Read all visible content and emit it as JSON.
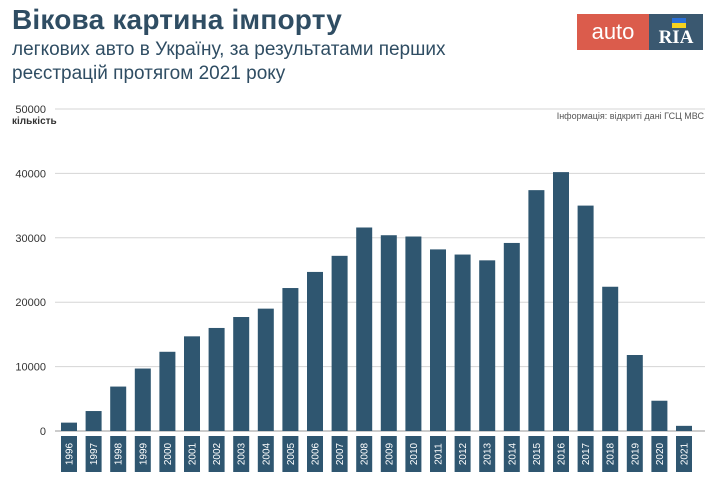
{
  "header": {
    "title": "Вікова картина імпорту",
    "subtitle": "легкових авто в Україну, за результатами перших реєстрацій протягом 2021 року"
  },
  "logo": {
    "auto_text": "auto",
    "ria_text": "RIA",
    "auto_color": "#db5c4c",
    "ria_color": "#3a5870"
  },
  "source_note": "Інформація: відкриті дані ГСЦ МВС",
  "bar_color": "#2f5670",
  "chart_data": {
    "type": "bar",
    "title": "Вікова картина імпорту легкових авто в Україну, за результатами перших реєстрацій протягом 2021 року",
    "xlabel": "",
    "ylabel": "кількість",
    "ylim": [
      0,
      50000
    ],
    "yticks": [
      0,
      10000,
      20000,
      30000,
      40000,
      50000
    ],
    "grid": true,
    "categories": [
      "1996",
      "1997",
      "1998",
      "1999",
      "2000",
      "2001",
      "2002",
      "2003",
      "2004",
      "2005",
      "2006",
      "2007",
      "2008",
      "2009",
      "2010",
      "2011",
      "2012",
      "2013",
      "2014",
      "2015",
      "2016",
      "2017",
      "2018",
      "2019",
      "2020",
      "2021"
    ],
    "values": [
      1300,
      3100,
      6900,
      9700,
      12300,
      14700,
      16000,
      17700,
      19000,
      22200,
      24700,
      27200,
      31600,
      30400,
      30200,
      28200,
      27400,
      26500,
      29200,
      37400,
      40200,
      35000,
      22400,
      11800,
      4700,
      800
    ]
  }
}
